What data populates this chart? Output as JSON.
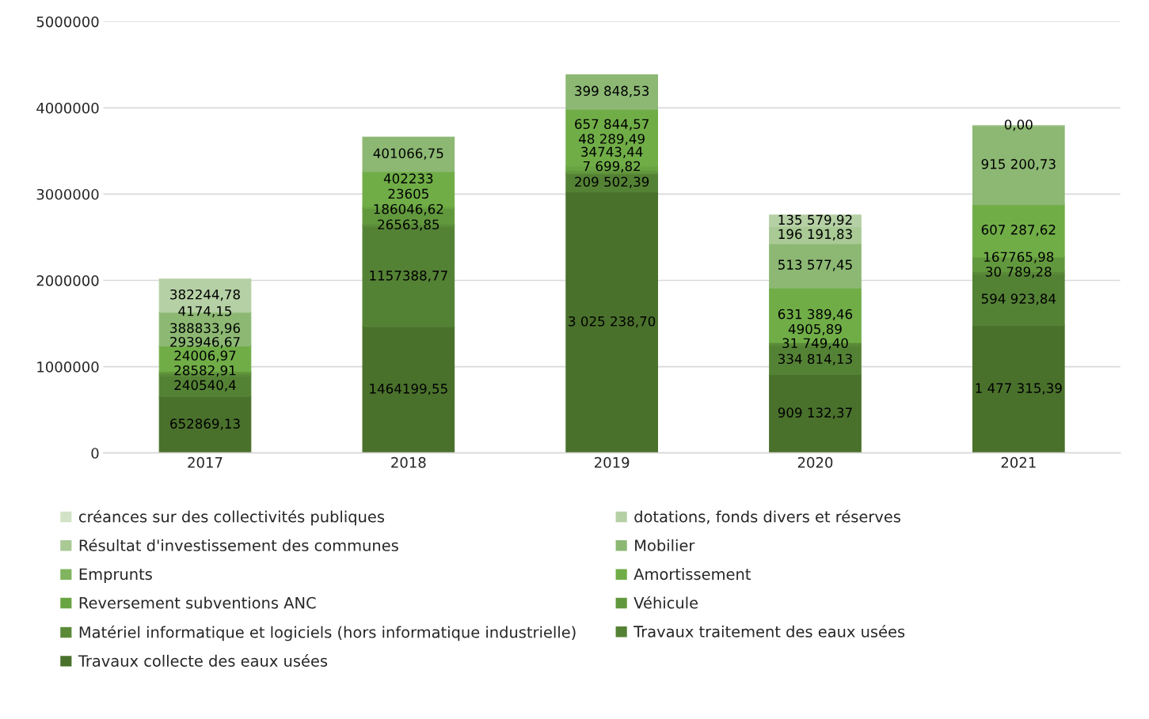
{
  "chart_data": {
    "type": "bar",
    "stacked": true,
    "categories": [
      "2017",
      "2018",
      "2019",
      "2020",
      "2021"
    ],
    "ylim": [
      0,
      5000000
    ],
    "yticks": [
      0,
      1000000,
      2000000,
      3000000,
      4000000,
      5000000
    ],
    "grid": "y",
    "legend": "bottom",
    "data_labels": true,
    "series": [
      {
        "name": "Travaux collecte des eaux usées",
        "color": "#4a712c",
        "values": [
          652869.13,
          1464199.55,
          3025238.7,
          909132.37,
          1477315.39
        ],
        "value_labels": [
          "652869,13",
          "1464199,55",
          "3 025 238,70",
          "909 132,37",
          "1 477 315,39"
        ]
      },
      {
        "name": "Travaux traitement des eaux usées",
        "color": "#548235",
        "values": [
          240540.4,
          1157388.77,
          209502.39,
          334814.13,
          594923.84
        ],
        "value_labels": [
          "240540,4",
          "1157388,77",
          "209 502,39",
          "334 814,13",
          "594 923,84"
        ]
      },
      {
        "name": "Matériel informatique et logiciels (hors informatique industrielle)",
        "color": "#5a8a38",
        "values": [
          28582.91,
          26563.85,
          7699.82,
          31749.4,
          30789.28
        ],
        "value_labels": [
          "28582,91",
          "26563,85",
          "7 699,82",
          "31 749,40",
          "30 789,28"
        ]
      },
      {
        "name": "Véhicule",
        "color": "#62983d",
        "values": [
          24006.97,
          186046.62,
          34743.44,
          4905.89,
          167765.98
        ],
        "value_labels": [
          "24006,97",
          "186046,62",
          "34743,44",
          "4905,89",
          "167765,98"
        ]
      },
      {
        "name": "Reversement subventions ANC",
        "color": "#69a442",
        "values": [
          null,
          23605,
          48289.49,
          null,
          null
        ],
        "value_labels": [
          null,
          "23605",
          "48 289,49",
          null,
          null
        ]
      },
      {
        "name": "Amortissement",
        "color": "#70ad47",
        "values": [
          293946.67,
          402233,
          657844.57,
          631389.46,
          607287.62
        ],
        "value_labels": [
          "293946,67",
          "402233",
          "657 844,57",
          "631 389,46",
          "607 287,62"
        ]
      },
      {
        "name": "Emprunts",
        "color": "#80b45e",
        "values": [
          null,
          null,
          null,
          null,
          null
        ],
        "value_labels": [
          null,
          null,
          null,
          null,
          null
        ]
      },
      {
        "name": "Mobilier",
        "color": "#8cb873",
        "values": [
          388833.96,
          401066.75,
          399848.53,
          513577.45,
          915200.73
        ],
        "value_labels": [
          "388833,96",
          "401066,75",
          "399 848,53",
          "513 577,45",
          "915 200,73"
        ]
      },
      {
        "name": "Résultat d'investissement des communes",
        "color": "#a9c995",
        "values": [
          4174.15,
          null,
          null,
          196191.83,
          null
        ],
        "value_labels": [
          "4174,15",
          null,
          null,
          "196 191,83",
          null
        ]
      },
      {
        "name": "dotations, fonds divers et réserves",
        "color": "#b5d0a5",
        "values": [
          382244.78,
          null,
          null,
          135579.92,
          0
        ],
        "value_labels": [
          "382244,78",
          null,
          null,
          "135 579,92",
          "0,00"
        ]
      },
      {
        "name": "créances sur des collectivités publiques",
        "color": "#d1e2c6",
        "values": [
          null,
          null,
          null,
          null,
          null
        ],
        "value_labels": [
          null,
          null,
          null,
          null,
          null
        ]
      }
    ]
  }
}
